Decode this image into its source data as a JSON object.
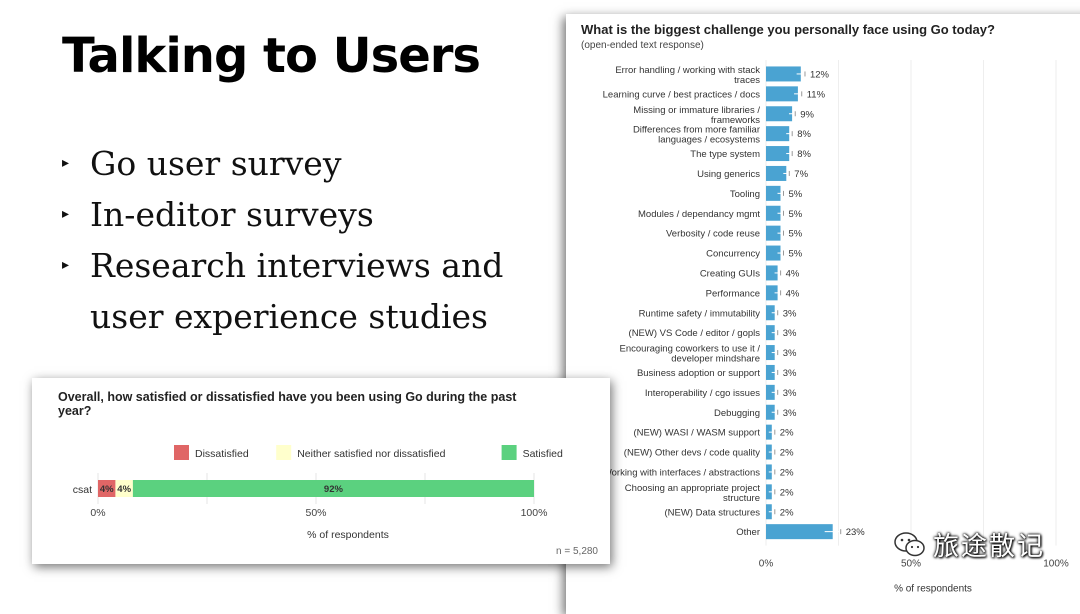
{
  "slide": {
    "title": "Talking to Users",
    "bullets": [
      {
        "text": "Go user survey"
      },
      {
        "text": "In-editor surveys"
      },
      {
        "text": "Research interviews and",
        "cont": "user experience studies"
      }
    ],
    "bullet_glyph": "▸"
  },
  "watermark": {
    "text": "旅途散记",
    "icon": "wechat-logo-icon"
  },
  "chart_data": [
    {
      "id": "satisfaction",
      "type": "bar",
      "orientation": "horizontal-stacked",
      "title": "Overall, how satisfied or dissatisfied have you been using Go during the past year?",
      "categories": [
        "csat"
      ],
      "series": [
        {
          "name": "Dissatisfied",
          "values": [
            4
          ],
          "label": "4%",
          "color": "#e06666"
        },
        {
          "name": "Neither satisfied nor dissatisfied",
          "values": [
            4
          ],
          "label": "4%",
          "color": "#ffffcc"
        },
        {
          "name": "Satisfied",
          "values": [
            92
          ],
          "label": "92%",
          "color": "#5bd17f"
        }
      ],
      "xlim": [
        0,
        100
      ],
      "xticks": [
        "0%",
        "50%",
        "100%"
      ],
      "xlabel": "% of respondents",
      "note": "n = 5,280"
    },
    {
      "id": "challenges",
      "type": "bar",
      "orientation": "horizontal",
      "title": "What is the biggest challenge you personally face using Go today?",
      "subtitle": "(open-ended text response)",
      "color": "#4aa3d2",
      "xlim": [
        0,
        100
      ],
      "xticks": [
        "0%",
        "50%",
        "100%"
      ],
      "xlabel": "% of respondents",
      "categories": [
        "Error handling / working with stack traces",
        "Learning curve / best practices / docs",
        "Missing or immature libraries / frameworks",
        "Differences from more familiar languages / ecosystems",
        "The type system",
        "Using generics",
        "Tooling",
        "Modules / dependancy mgmt",
        "Verbosity / code reuse",
        "Concurrency",
        "Creating GUIs",
        "Performance",
        "Runtime safety / immutability",
        "(NEW) VS Code / editor / gopls",
        "Encouraging coworkers to use it / developer mindshare",
        "Business adoption or support",
        "Interoperability / cgo issues",
        "Debugging",
        "(NEW) WASI / WASM support",
        "(NEW) Other devs / code quality",
        "Working with interfaces / abstractions",
        "Choosing an appropriate project structure",
        "(NEW) Data structures",
        "Other"
      ],
      "label_lines": [
        [
          "Error handling / working with stack",
          "traces"
        ],
        [
          "Learning curve / best practices / docs"
        ],
        [
          "Missing or immature libraries /",
          "frameworks"
        ],
        [
          "Differences from more familiar",
          "languages / ecosystems"
        ],
        [
          "The type system"
        ],
        [
          "Using generics"
        ],
        [
          "Tooling"
        ],
        [
          "Modules / dependancy mgmt"
        ],
        [
          "Verbosity / code reuse"
        ],
        [
          "Concurrency"
        ],
        [
          "Creating GUIs"
        ],
        [
          "Performance"
        ],
        [
          "Runtime safety / immutability"
        ],
        [
          "(NEW) VS Code / editor / gopls"
        ],
        [
          "Encouraging coworkers to use it /",
          "developer mindshare"
        ],
        [
          "Business adoption or support"
        ],
        [
          "Interoperability / cgo issues"
        ],
        [
          "Debugging"
        ],
        [
          "(NEW) WASI / WASM support"
        ],
        [
          "(NEW) Other devs / code quality"
        ],
        [
          "Working with interfaces / abstractions"
        ],
        [
          "Choosing an appropriate project",
          "structure"
        ],
        [
          "(NEW) Data structures"
        ],
        [
          "Other"
        ]
      ],
      "values": [
        12,
        11,
        9,
        8,
        8,
        7,
        5,
        5,
        5,
        5,
        4,
        4,
        3,
        3,
        3,
        3,
        3,
        3,
        2,
        2,
        2,
        2,
        2,
        23
      ],
      "value_labels": [
        "12%",
        "11%",
        "9%",
        "8%",
        "8%",
        "7%",
        "5%",
        "5%",
        "5%",
        "5%",
        "4%",
        "4%",
        "3%",
        "3%",
        "3%",
        "3%",
        "3%",
        "3%",
        "2%",
        "2%",
        "2%",
        "2%",
        "2%",
        "23%"
      ]
    }
  ]
}
